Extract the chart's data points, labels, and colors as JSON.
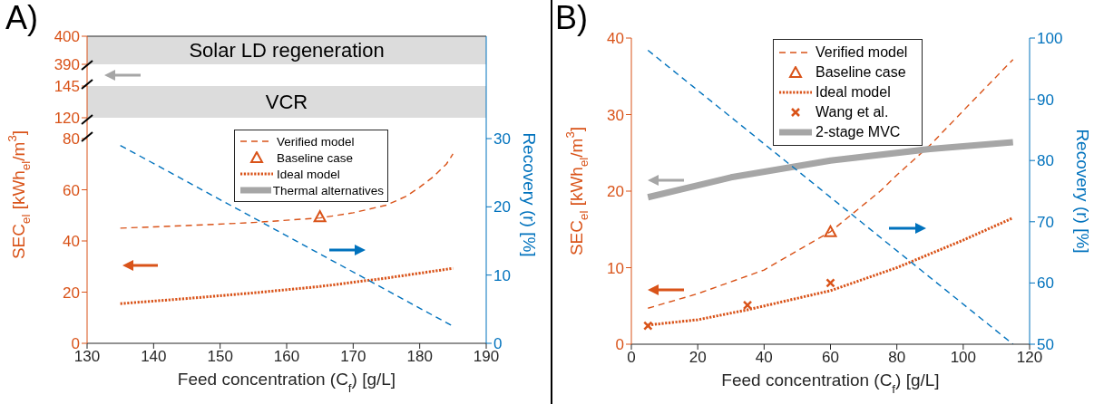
{
  "chart_data": [
    {
      "type": "line",
      "title": "A)",
      "xlim": [
        130,
        190
      ],
      "ylim": [
        390,
        400
      ],
      "yticks": [
        390,
        400
      ],
      "tick_labels": "y",
      "bands": [
        {
          "axis": "y",
          "from": 390,
          "to": 400,
          "label": "Solar LD regeneration",
          "color": "#dcdcdc"
        }
      ]
    },
    {
      "type": "line",
      "xlim": [
        130,
        190
      ],
      "ylim": [
        120,
        145
      ],
      "yticks": [
        120,
        145
      ],
      "tick_labels": "y",
      "bands": [
        {
          "axis": "y",
          "from": 120,
          "to": 145,
          "label": "VCR",
          "color": "#dcdcdc"
        }
      ]
    },
    {
      "type": "line",
      "xlabel": "Feed concentration  (C$_{f}$) [g/L]",
      "ylabel": "SEC$_{el}$ [kWh$_{el}$/m$^{3}$]",
      "y2label": "Recovery (r) [%]",
      "xlim": [
        130,
        190
      ],
      "xticks": [
        130,
        140,
        150,
        160,
        170,
        180,
        190
      ],
      "ylim": [
        0,
        80
      ],
      "yticks": [
        0,
        20,
        40,
        60,
        80
      ],
      "y2lim": [
        0,
        30
      ],
      "y2ticks": [
        0,
        10,
        20,
        30
      ],
      "legend": "top",
      "series": [
        {
          "name": "Verified model",
          "type": "line",
          "line_style": "dashed",
          "color": "#d95319",
          "x": [
            135,
            145,
            155,
            165,
            170,
            175,
            178,
            180,
            182,
            184,
            185
          ],
          "values": [
            45,
            46,
            47.2,
            49,
            51,
            54,
            57.5,
            61,
            65,
            70,
            74
          ]
        },
        {
          "name": "Baseline case",
          "type": "scatter",
          "marker": "triangle",
          "color": "#d95319",
          "x": [
            165
          ],
          "values": [
            49.5
          ]
        },
        {
          "name": "Ideal model",
          "type": "line",
          "line_style": "dotted",
          "color": "#d95319",
          "x": [
            135,
            145,
            155,
            165,
            175,
            185
          ],
          "values": [
            15.5,
            17.5,
            19.7,
            22.2,
            25.5,
            29.3
          ]
        },
        {
          "name": "Thermal alternatives",
          "type": "line",
          "line_style": "solid",
          "color": "#a6a6a6"
        },
        {
          "type": "line",
          "axis": "y2",
          "line_style": "dashed",
          "color": "#0072bd",
          "x": [
            135,
            185
          ],
          "values": [
            29,
            2.5
          ]
        }
      ]
    },
    {
      "type": "line",
      "title": "B)",
      "xlabel": "Feed concentration  (C$_{f}$) [g/L]",
      "ylabel": "SEC$_{el}$ [kWh$_{el}$/m$^{3}$]",
      "y2label": "Recovery (r) [%]",
      "xlim": [
        0,
        120
      ],
      "xticks": [
        0,
        20,
        40,
        60,
        80,
        100,
        120
      ],
      "ylim": [
        0,
        40
      ],
      "yticks": [
        0,
        10,
        20,
        30,
        40
      ],
      "y2lim": [
        50,
        100
      ],
      "y2ticks": [
        50,
        60,
        70,
        80,
        90,
        100
      ],
      "legend": "top",
      "series": [
        {
          "name": "Verified model",
          "type": "line",
          "line_style": "dashed",
          "color": "#d95319",
          "x": [
            5,
            20,
            40,
            60,
            75,
            80,
            90,
            100,
            115
          ],
          "values": [
            4.7,
            6.6,
            9.7,
            14.7,
            20,
            22.1,
            26,
            30.5,
            37.2
          ]
        },
        {
          "name": "Baseline case",
          "type": "scatter",
          "marker": "triangle",
          "color": "#d95319",
          "x": [
            60
          ],
          "values": [
            14.7
          ]
        },
        {
          "name": "Ideal model",
          "type": "line",
          "line_style": "dotted",
          "color": "#d95319",
          "x": [
            5,
            20,
            35,
            60,
            80,
            100,
            115
          ],
          "values": [
            2.5,
            3.2,
            4.5,
            7,
            10,
            13.6,
            16.5
          ]
        },
        {
          "name": "Wang et al.",
          "type": "scatter",
          "marker": "cross",
          "color": "#d95319",
          "x": [
            5,
            35,
            60
          ],
          "values": [
            2.4,
            5.1,
            8
          ]
        },
        {
          "name": "2-stage MVC",
          "type": "line",
          "line_style": "solid",
          "color": "#a6a6a6",
          "x": [
            5,
            30,
            60,
            90,
            115
          ],
          "values": [
            19.2,
            21.8,
            24,
            25.5,
            26.4
          ]
        },
        {
          "type": "line",
          "axis": "y2",
          "line_style": "dashed",
          "color": "#0072bd",
          "x": [
            5,
            115
          ],
          "values": [
            98,
            50
          ]
        }
      ]
    }
  ]
}
